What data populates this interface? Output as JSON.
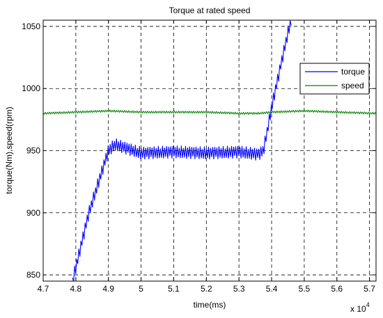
{
  "chart_data": {
    "type": "line",
    "title": "Torque at rated speed",
    "xlabel": "time(ms)",
    "ylabel": "torque(Nm),speed(rpm)",
    "x_multiplier_label": "x 10",
    "x_multiplier_exponent": "4",
    "xlim": [
      4.7,
      5.72
    ],
    "ylim": [
      845,
      1055
    ],
    "x_ticks": [
      4.7,
      4.8,
      4.9,
      5.0,
      5.1,
      5.2,
      5.3,
      5.4,
      5.5,
      5.6,
      5.7
    ],
    "x_tick_labels": [
      "4.7",
      "4.8",
      "4.9",
      "5",
      "5.1",
      "5.2",
      "5.3",
      "5.4",
      "5.5",
      "5.6",
      "5.7"
    ],
    "y_ticks": [
      850,
      900,
      950,
      1000,
      1050
    ],
    "y_tick_labels": [
      "850",
      "900",
      "950",
      "1000",
      "1050"
    ],
    "grid": true,
    "grid_style": "dashed",
    "legend_position": "top-right",
    "series": [
      {
        "name": "torque",
        "color": "#0000ff",
        "x": [
          4.79,
          4.84,
          4.9,
          4.92,
          5.0,
          5.1,
          5.2,
          5.3,
          5.36,
          5.375,
          5.4,
          5.45,
          5.46
        ],
        "y": [
          845,
          900,
          950,
          955,
          948,
          949,
          948,
          949,
          947,
          950,
          985,
          1045,
          1055
        ]
      },
      {
        "name": "speed",
        "color": "#008000",
        "x": [
          4.7,
          4.8,
          4.9,
          5.0,
          5.1,
          5.2,
          5.3,
          5.36,
          5.4,
          5.5,
          5.6,
          5.72
        ],
        "y": [
          980,
          981,
          982,
          981,
          981,
          981,
          980,
          980,
          981,
          982,
          981,
          980
        ]
      }
    ]
  }
}
